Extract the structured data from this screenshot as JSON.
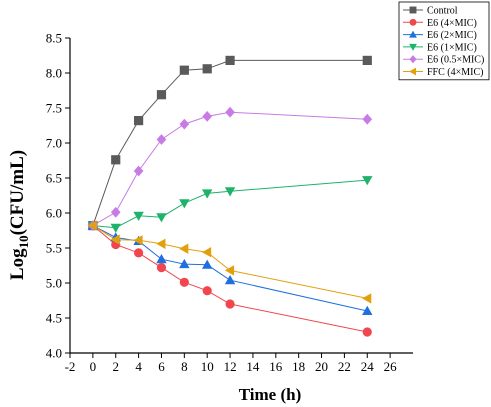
{
  "chart_data": {
    "type": "line",
    "xlabel": "Time (h)",
    "ylabel_main": "Log",
    "ylabel_sub": "10",
    "ylabel_tail": "(CFU/mL)",
    "xlim": [
      -2,
      28
    ],
    "ylim": [
      4.0,
      8.5
    ],
    "xticks": [
      "-2",
      "0",
      "2",
      "4",
      "6",
      "8",
      "10",
      "12",
      "14",
      "16",
      "18",
      "20",
      "22",
      "24",
      "26"
    ],
    "xtick_values": [
      -2,
      0,
      2,
      4,
      6,
      8,
      10,
      12,
      14,
      16,
      18,
      20,
      22,
      24,
      26
    ],
    "yticks": [
      "4.0",
      "4.5",
      "5.0",
      "5.5",
      "6.0",
      "6.5",
      "7.0",
      "7.5",
      "8.0",
      "8.5"
    ],
    "ytick_values": [
      4.0,
      4.5,
      5.0,
      5.5,
      6.0,
      6.5,
      7.0,
      7.5,
      8.0,
      8.5
    ],
    "grid": false,
    "legend_position": "top-right",
    "series": [
      {
        "name": "Control",
        "color": "#5a5a5a",
        "marker": "square",
        "x": [
          0,
          2,
          4,
          6,
          8,
          10,
          12,
          24
        ],
        "y": [
          5.82,
          6.76,
          7.32,
          7.69,
          8.04,
          8.06,
          8.18,
          8.18
        ]
      },
      {
        "name": "E6 (4×MIC)",
        "color": "#f0474f",
        "marker": "circle",
        "x": [
          0,
          2,
          4,
          6,
          8,
          10,
          12,
          24
        ],
        "y": [
          5.82,
          5.55,
          5.43,
          5.22,
          5.01,
          4.89,
          4.7,
          4.3
        ]
      },
      {
        "name": "E6 (2×MIC)",
        "color": "#1f6fe0",
        "marker": "triangle-up",
        "x": [
          0,
          2,
          4,
          6,
          8,
          10,
          12,
          24
        ],
        "y": [
          5.82,
          5.65,
          5.6,
          5.34,
          5.27,
          5.26,
          5.04,
          4.6
        ]
      },
      {
        "name": "E6 (1×MIC)",
        "color": "#1db36b",
        "marker": "triangle-down",
        "x": [
          0,
          2,
          4,
          6,
          8,
          10,
          12,
          24
        ],
        "y": [
          5.82,
          5.79,
          5.96,
          5.94,
          6.14,
          6.28,
          6.31,
          6.47
        ]
      },
      {
        "name": "E6 (0.5×MIC)",
        "color": "#c77be6",
        "marker": "diamond",
        "x": [
          0,
          2,
          4,
          6,
          8,
          10,
          12,
          24
        ],
        "y": [
          5.82,
          6.01,
          6.6,
          7.05,
          7.27,
          7.38,
          7.44,
          7.34
        ]
      },
      {
        "name": "FFC (4×MIC)",
        "color": "#e3a00e",
        "marker": "triangle-left",
        "x": [
          0,
          2,
          4,
          6,
          8,
          10,
          12,
          24
        ],
        "y": [
          5.82,
          5.62,
          5.61,
          5.56,
          5.49,
          5.44,
          5.18,
          4.78
        ]
      }
    ]
  }
}
